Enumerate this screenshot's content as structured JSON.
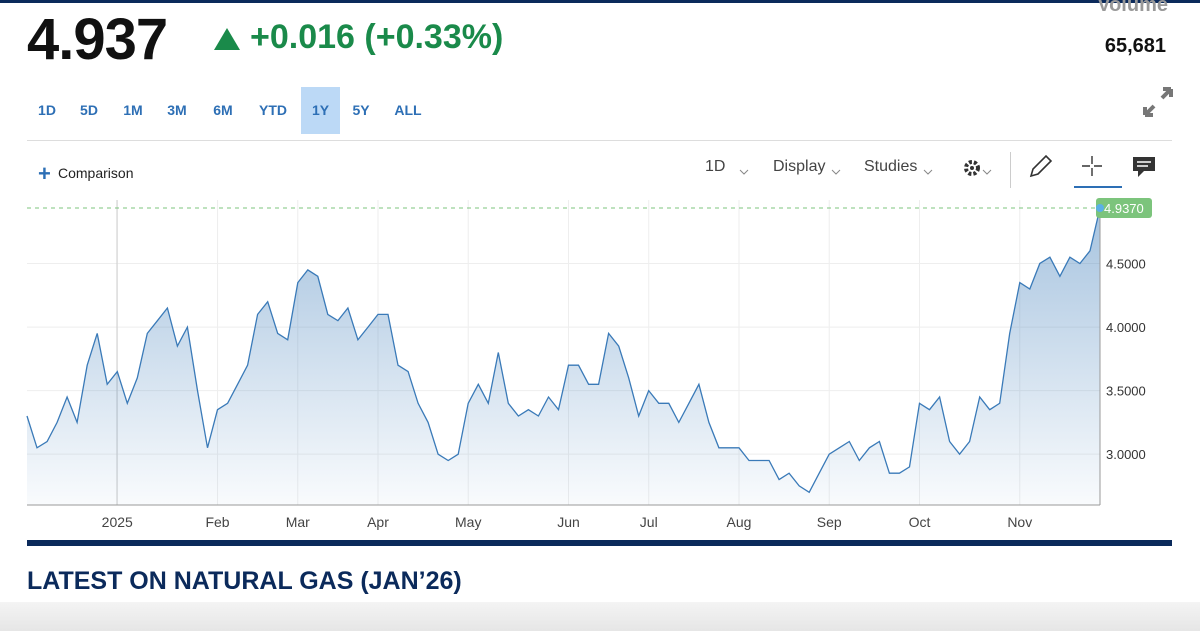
{
  "header": {
    "price": "4.937",
    "change": "+0.016 (+0.33%)",
    "volume_label": "Volume",
    "volume": "65,681"
  },
  "ranges": [
    "1D",
    "5D",
    "1M",
    "3M",
    "6M",
    "YTD",
    "1Y",
    "5Y",
    "ALL"
  ],
  "active_range": "1Y",
  "toolbar": {
    "comparison": "Comparison",
    "interval": "1D",
    "display": "Display",
    "studies": "Studies"
  },
  "chart_data": {
    "type": "line",
    "color": "#3a7ab8",
    "categories": [
      null,
      null,
      null,
      null,
      null,
      null,
      null,
      null,
      null,
      "2025",
      null,
      null,
      null,
      null,
      null,
      null,
      null,
      null,
      null,
      "Feb",
      null,
      null,
      null,
      null,
      null,
      null,
      null,
      "Mar",
      null,
      null,
      null,
      null,
      null,
      null,
      null,
      "Apr",
      null,
      null,
      null,
      null,
      null,
      null,
      null,
      null,
      "May",
      null,
      null,
      null,
      null,
      null,
      null,
      null,
      null,
      null,
      "Jun",
      null,
      null,
      null,
      null,
      null,
      null,
      null,
      "Jul",
      null,
      null,
      null,
      null,
      null,
      null,
      null,
      null,
      "Aug",
      null,
      null,
      null,
      null,
      null,
      null,
      null,
      null,
      "Sep",
      null,
      null,
      null,
      null,
      null,
      null,
      null,
      null,
      "Oct",
      null,
      null,
      null,
      null,
      null,
      null,
      null,
      null,
      null,
      "Nov",
      null,
      null,
      null,
      null,
      null,
      null,
      null,
      null
    ],
    "values": [
      3.3,
      3.05,
      3.1,
      3.25,
      3.45,
      3.25,
      3.7,
      3.95,
      3.55,
      3.65,
      3.4,
      3.6,
      3.95,
      4.05,
      4.15,
      3.85,
      4.0,
      3.5,
      3.05,
      3.35,
      3.4,
      3.55,
      3.7,
      4.1,
      4.2,
      3.95,
      3.9,
      4.35,
      4.45,
      4.4,
      4.1,
      4.05,
      4.15,
      3.9,
      4.0,
      4.1,
      4.1,
      3.7,
      3.65,
      3.4,
      3.25,
      3.0,
      2.95,
      3.0,
      3.4,
      3.55,
      3.4,
      3.8,
      3.4,
      3.3,
      3.35,
      3.3,
      3.45,
      3.35,
      3.7,
      3.7,
      3.55,
      3.55,
      3.95,
      3.85,
      3.6,
      3.3,
      3.5,
      3.4,
      3.4,
      3.25,
      3.4,
      3.55,
      3.25,
      3.05,
      3.05,
      3.05,
      2.95,
      2.95,
      2.95,
      2.8,
      2.85,
      2.75,
      2.7,
      2.85,
      3.0,
      3.05,
      3.1,
      2.95,
      3.05,
      3.1,
      2.85,
      2.85,
      2.9,
      3.4,
      3.35,
      3.45,
      3.1,
      3.0,
      3.1,
      3.45,
      3.35,
      3.4,
      3.95,
      4.35,
      4.3,
      4.5,
      4.55,
      4.4,
      4.55,
      4.5,
      4.6,
      4.937
    ],
    "value_labels": [
      null,
      null,
      null,
      null,
      null,
      null,
      null,
      null,
      null,
      null,
      null,
      null,
      null,
      null,
      null,
      null,
      null,
      null,
      null,
      null,
      null,
      null,
      null,
      null,
      null,
      null,
      null,
      null,
      null,
      null,
      null,
      null,
      null,
      null,
      null,
      null,
      null,
      null,
      null,
      null,
      null,
      null,
      null,
      null,
      null,
      null,
      null,
      null,
      null,
      null,
      null,
      null,
      null,
      null,
      null,
      null,
      null,
      null,
      null,
      null,
      null,
      null,
      null,
      null,
      null,
      null,
      null,
      null,
      null,
      null,
      null,
      null,
      null,
      null,
      null,
      null,
      null,
      null,
      null,
      null,
      null,
      null,
      null,
      null,
      null,
      null,
      null,
      null,
      null,
      null,
      null,
      null,
      null,
      null,
      null,
      null,
      null,
      null,
      null,
      null,
      null,
      null,
      null,
      null,
      null,
      null,
      null,
      "4.9370"
    ],
    "ylim": [
      2.6,
      5.0
    ],
    "yticks": [
      {
        "value": 3,
        "label": "3.0000"
      },
      {
        "value": 3.5,
        "label": "3.5000"
      },
      {
        "value": 4,
        "label": "4.0000"
      },
      {
        "value": 4.5,
        "label": "4.5000"
      }
    ],
    "grid": true
  },
  "news": {
    "heading": "LATEST ON NATURAL GAS (JAN’26)"
  }
}
